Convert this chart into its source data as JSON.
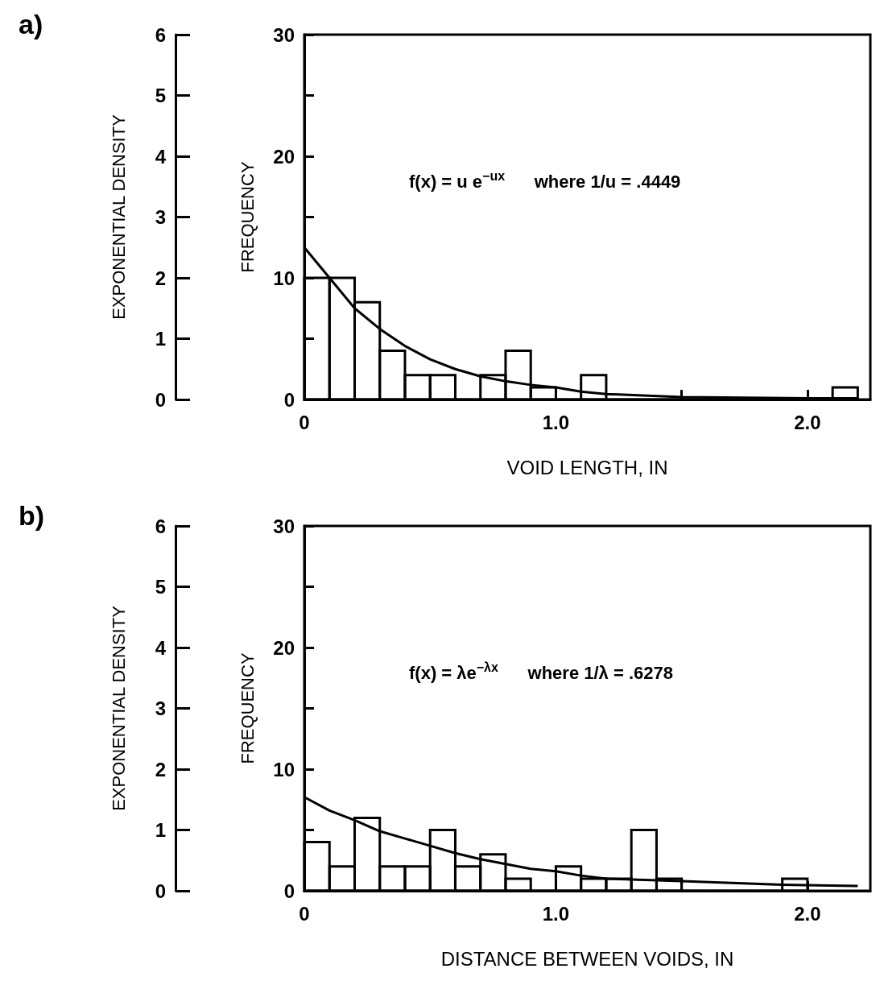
{
  "chart_data": [
    {
      "type": "histogram",
      "title": "a)",
      "xlabel": "VOID LENGTH, IN",
      "ylabel": "FREQUENCY",
      "y2label": "EXPONENTIAL DENSITY",
      "annotations": [
        "f(x) = u e$^{−ux}$      where 1/u = .4449"
      ],
      "bins": [
        0,
        0.1,
        0.2,
        0.3,
        0.4,
        0.5,
        0.6,
        0.7,
        0.8,
        0.9,
        1.0,
        1.1,
        1.2,
        1.3,
        1.4,
        1.5,
        1.6,
        1.7,
        1.8,
        1.9,
        2.0,
        2.1,
        2.2
      ],
      "series": [
        {
          "color": "#000000",
          "values": [
            10,
            10,
            8,
            4,
            2,
            2,
            0,
            2,
            4,
            1,
            0,
            2,
            0,
            0,
            0,
            0,
            0,
            0,
            0,
            0,
            0,
            1
          ]
        },
        {
          "type": "line",
          "color": "#000000",
          "x": [
            0,
            0.1,
            0.2,
            0.3,
            0.4,
            0.5,
            0.6,
            0.7,
            0.8,
            0.9,
            1.0,
            1.1,
            1.2,
            1.5,
            2.0,
            2.2
          ],
          "values": [
            12.5,
            10,
            7.5,
            5.8,
            4.4,
            3.3,
            2.5,
            1.9,
            1.5,
            1.2,
            1.0,
            0.65,
            0.45,
            0.2,
            0.1,
            0.1
          ]
        }
      ],
      "xlim": [
        0,
        2.25
      ],
      "xticks": [
        0,
        {
          "value": 0.5,
          "label": null
        },
        {
          "value": 1.0,
          "label": "1.0"
        },
        {
          "value": 1.5,
          "label": null
        },
        {
          "value": 2.0,
          "label": "2.0"
        }
      ],
      "ylim": [
        0,
        30
      ],
      "yticks": [
        0,
        {
          "value": 5,
          "label": null
        },
        10,
        {
          "value": 15,
          "label": null
        },
        20,
        {
          "value": 25,
          "label": null
        },
        30
      ],
      "y2lim": [
        0,
        6
      ],
      "y2ticks": [
        0,
        1,
        2,
        3,
        4,
        5,
        6
      ]
    },
    {
      "type": "histogram",
      "title": "b)",
      "xlabel": "DISTANCE BETWEEN VOIDS, IN",
      "ylabel": "FREQUENCY",
      "y2label": "EXPONENTIAL DENSITY",
      "annotations": [
        "f(x) = λe$^{−λx}$      where 1/λ = .6278"
      ],
      "bins": [
        0,
        0.1,
        0.2,
        0.3,
        0.4,
        0.5,
        0.6,
        0.7,
        0.8,
        0.9,
        1.0,
        1.1,
        1.2,
        1.3,
        1.4,
        1.5,
        1.6,
        1.7,
        1.8,
        1.9,
        2.0
      ],
      "series": [
        {
          "color": "#000000",
          "values": [
            4,
            2,
            6,
            2,
            2,
            5,
            2,
            3,
            1,
            0,
            2,
            1,
            1,
            5,
            1,
            0,
            0,
            0,
            0,
            1
          ]
        },
        {
          "type": "line",
          "color": "#000000",
          "x": [
            0,
            0.1,
            0.2,
            0.3,
            0.4,
            0.5,
            0.6,
            0.7,
            0.8,
            0.9,
            1.0,
            1.1,
            1.2,
            1.5,
            1.9,
            2.2
          ],
          "values": [
            7.7,
            6.6,
            5.8,
            4.9,
            4.3,
            3.7,
            3.1,
            2.6,
            2.2,
            1.8,
            1.6,
            1.25,
            1.0,
            0.8,
            0.5,
            0.4
          ]
        }
      ],
      "xlim": [
        0,
        2.25
      ],
      "xticks": [
        0,
        {
          "value": 0.5,
          "label": null
        },
        {
          "value": 1.0,
          "label": "1.0"
        },
        {
          "value": 1.5,
          "label": null
        },
        {
          "value": 2.0,
          "label": "2.0"
        }
      ],
      "ylim": [
        0,
        30
      ],
      "yticks": [
        0,
        {
          "value": 5,
          "label": null
        },
        10,
        {
          "value": 15,
          "label": null
        },
        20,
        {
          "value": 25,
          "label": null
        },
        30
      ],
      "y2lim": [
        0,
        6
      ],
      "y2ticks": [
        0,
        1,
        2,
        3,
        4,
        5,
        6
      ]
    }
  ]
}
